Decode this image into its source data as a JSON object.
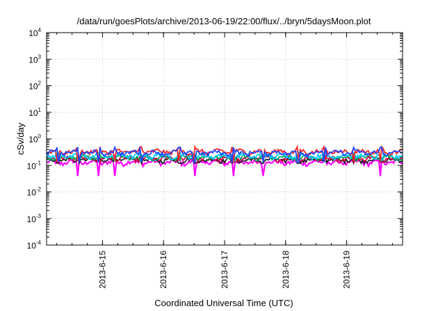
{
  "chart_data": {
    "type": "line",
    "title": "/data/run/goesPlots/archive/2013-06-19/22:00/flux/../bryn/5daysMoon.plot",
    "xlabel": "Coordinated Universal Time (UTC)",
    "ylabel": "cSv/day",
    "yscale": "log",
    "ylim": [
      0.0001,
      10000
    ],
    "xlim": [
      "2013-06-14 02:00",
      "2013-06-19 22:00"
    ],
    "grid": true,
    "y_ticks": [
      {
        "base": "10",
        "exp": "4"
      },
      {
        "base": "10",
        "exp": "3"
      },
      {
        "base": "10",
        "exp": "2"
      },
      {
        "base": "10",
        "exp": "1"
      },
      {
        "base": "10",
        "exp": "0"
      },
      {
        "base": "10",
        "exp": "-1"
      },
      {
        "base": "10",
        "exp": "-2"
      },
      {
        "base": "10",
        "exp": "-3"
      },
      {
        "base": "10",
        "exp": "-4"
      }
    ],
    "x_ticks": [
      {
        "label": "2013-6-15",
        "at": "2013-06-15"
      },
      {
        "label": "2013-6-16",
        "at": "2013-06-16"
      },
      {
        "label": "2013-6-17",
        "at": "2013-06-17"
      },
      {
        "label": "2013-6-18",
        "at": "2013-06-18"
      },
      {
        "label": "2013-6-19",
        "at": "2013-06-19"
      }
    ],
    "series": [
      {
        "color": "#ff00ff",
        "values_approx": {
          "median": 0.13,
          "min": 0.04,
          "max": 0.16
        }
      },
      {
        "color": "#222222",
        "values_approx": {
          "median": 0.16,
          "min": 0.12,
          "max": 0.19
        }
      },
      {
        "color": "#cc0044",
        "values_approx": {
          "median": 0.18,
          "min": 0.13,
          "max": 0.22
        }
      },
      {
        "color": "#00aa66",
        "values_approx": {
          "median": 0.2,
          "min": 0.15,
          "max": 0.25
        }
      },
      {
        "color": "#00ccff",
        "values_approx": {
          "median": 0.23,
          "min": 0.16,
          "max": 0.3
        }
      },
      {
        "color": "#ff2222",
        "values_approx": {
          "median": 0.33,
          "min": 0.15,
          "max": 0.5
        }
      },
      {
        "color": "#2244ff",
        "values_approx": {
          "median": 0.3,
          "min": 0.13,
          "max": 0.48
        }
      }
    ]
  }
}
